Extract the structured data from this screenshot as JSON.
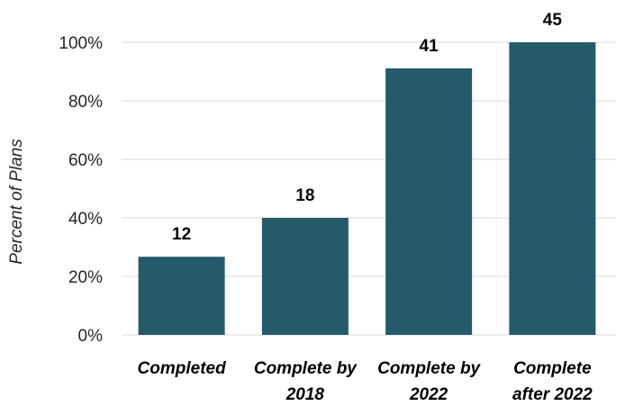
{
  "chart_data": {
    "type": "bar",
    "categories": [
      [
        "Completed"
      ],
      [
        "Complete by",
        "2018"
      ],
      [
        "Complete by",
        "2022"
      ],
      [
        "Complete",
        "after 2022"
      ]
    ],
    "values": [
      26.7,
      40,
      91.1,
      100
    ],
    "data_labels": [
      "12",
      "18",
      "41",
      "45"
    ],
    "title": "",
    "xlabel": "",
    "ylabel": "Percent of Plans",
    "ylim": [
      0,
      100
    ],
    "yticks": [
      0,
      20,
      40,
      60,
      80,
      100
    ],
    "ytick_labels": [
      "0%",
      "20%",
      "40%",
      "60%",
      "80%",
      "100%"
    ],
    "grid": true,
    "legend": "none",
    "colors": {
      "bar": "#245a6a"
    }
  }
}
